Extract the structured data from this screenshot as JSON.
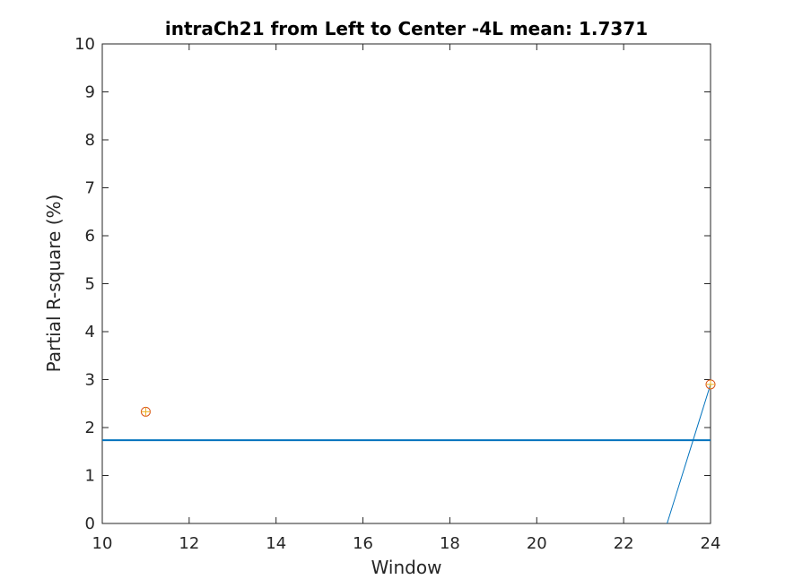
{
  "chart_data": {
    "type": "line",
    "title": "intraCh21 from Left to Center -4L mean: 1.7371",
    "xlabel": "Window",
    "ylabel": "Partial R-square (%)",
    "xlim": [
      10,
      24
    ],
    "ylim": [
      0,
      10
    ],
    "xticks": [
      "10",
      "12",
      "14",
      "16",
      "18",
      "20",
      "22",
      "24"
    ],
    "yticks": [
      "0",
      "1",
      "2",
      "3",
      "4",
      "5",
      "6",
      "7",
      "8",
      "9",
      "10"
    ],
    "grid": false,
    "mean_value": 1.7371,
    "markers": [
      {
        "x": 11,
        "y": 2.33
      },
      {
        "x": 24,
        "y": 2.9
      }
    ],
    "series_line": [
      {
        "x": 23,
        "y": 0
      },
      {
        "x": 24,
        "y": 2.9
      }
    ],
    "colors": {
      "line": "#0072BD",
      "marker_circle": "#D95319",
      "marker_plus": "#EDB120",
      "axes": "#262626"
    }
  }
}
